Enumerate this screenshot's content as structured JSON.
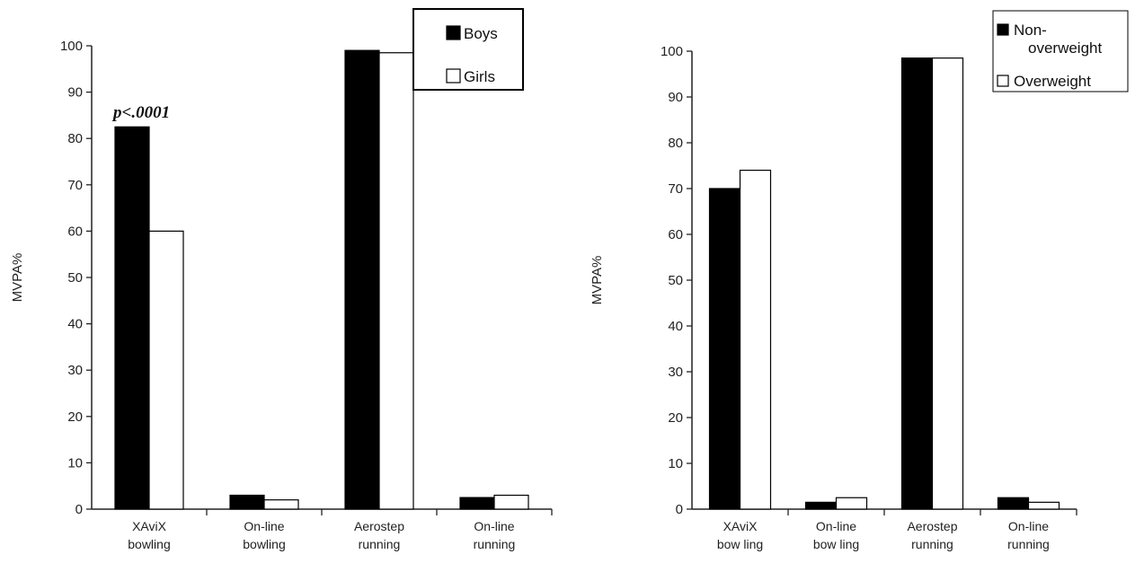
{
  "chart_data": [
    {
      "type": "bar",
      "ylabel": "MVPA%",
      "ylim": [
        0,
        100
      ],
      "yticks": [
        0,
        10,
        20,
        30,
        40,
        50,
        60,
        70,
        80,
        90,
        100
      ],
      "categories": [
        [
          "XAviX",
          "bowling"
        ],
        [
          "On-line",
          "bowling"
        ],
        [
          "Aerostep",
          "running"
        ],
        [
          "On-line",
          "running"
        ]
      ],
      "series": [
        {
          "name": "Boys",
          "color": "#000000",
          "values": [
            82.5,
            3,
            99,
            2.5
          ]
        },
        {
          "name": "Girls",
          "color": "#ffffff",
          "values": [
            60,
            2,
            98.5,
            3
          ]
        }
      ],
      "legend": {
        "position": "top-right",
        "labels": [
          "Boys",
          "Girls"
        ]
      },
      "annotation": "p<.0001",
      "grid": false
    },
    {
      "type": "bar",
      "ylabel": "MVPA%",
      "ylim": [
        0,
        100
      ],
      "yticks": [
        0,
        10,
        20,
        30,
        40,
        50,
        60,
        70,
        80,
        90,
        100
      ],
      "categories": [
        [
          "XAviX",
          "bow ling"
        ],
        [
          "On-line",
          "bow ling"
        ],
        [
          "Aerostep",
          "running"
        ],
        [
          "On-line",
          "running"
        ]
      ],
      "series": [
        {
          "name": "Non-overweight",
          "color": "#000000",
          "values": [
            70,
            1.5,
            98.5,
            2.5
          ]
        },
        {
          "name": "Overweight",
          "color": "#ffffff",
          "values": [
            74,
            2.5,
            98.5,
            1.5
          ]
        }
      ],
      "legend": {
        "position": "top-right",
        "labels": [
          [
            "Non-",
            "overweight"
          ],
          [
            "Overweight"
          ]
        ]
      },
      "grid": false
    }
  ]
}
